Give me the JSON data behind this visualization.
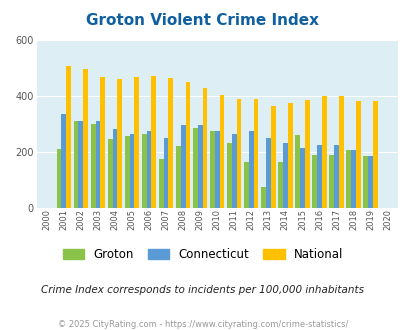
{
  "title": "Groton Violent Crime Index",
  "title_color": "#1060a0",
  "subtitle": "Crime Index corresponds to incidents per 100,000 inhabitants",
  "footer": "© 2025 CityRating.com - https://www.cityrating.com/crime-statistics/",
  "years": [
    2000,
    2001,
    2002,
    2003,
    2004,
    2005,
    2006,
    2007,
    2008,
    2009,
    2010,
    2011,
    2012,
    2013,
    2014,
    2015,
    2016,
    2017,
    2018,
    2019,
    2020
  ],
  "groton": [
    0,
    210,
    310,
    300,
    245,
    255,
    265,
    175,
    220,
    285,
    275,
    230,
    165,
    75,
    165,
    260,
    190,
    190,
    205,
    185,
    0
  ],
  "connecticut": [
    0,
    335,
    310,
    310,
    280,
    265,
    275,
    248,
    295,
    295,
    275,
    265,
    275,
    248,
    230,
    215,
    225,
    225,
    208,
    185,
    0
  ],
  "national": [
    0,
    505,
    495,
    468,
    460,
    468,
    470,
    463,
    450,
    428,
    403,
    388,
    388,
    365,
    375,
    383,
    398,
    398,
    382,
    380,
    0
  ],
  "groton_color": "#8bc34a",
  "connecticut_color": "#5b9bd5",
  "national_color": "#ffc000",
  "background_color": "#ddeef5",
  "ylim": [
    0,
    600
  ],
  "yticks": [
    0,
    200,
    400,
    600
  ],
  "bar_width": 0.28
}
